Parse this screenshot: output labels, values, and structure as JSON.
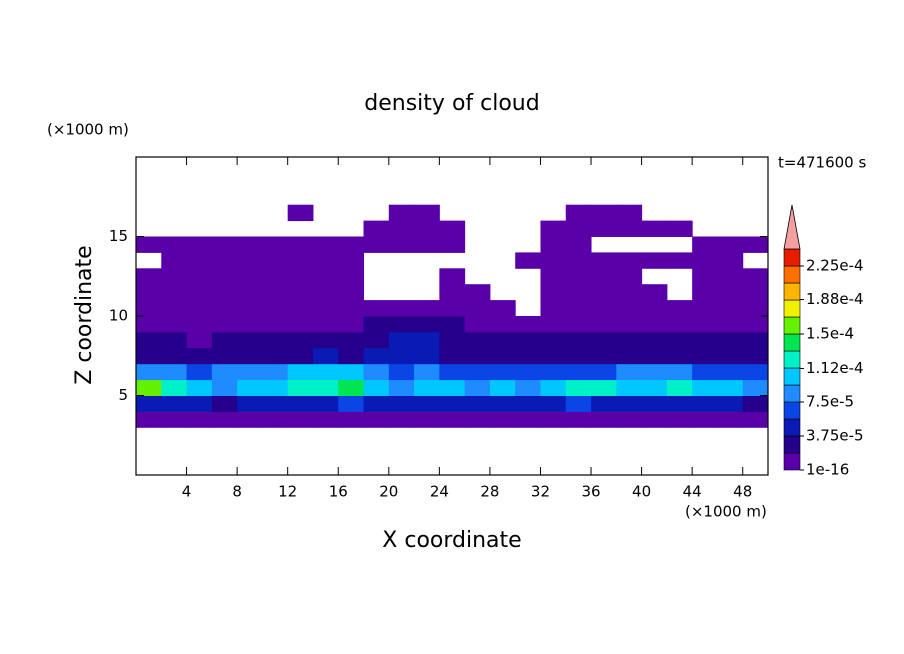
{
  "chart_data": {
    "type": "contour",
    "title": "density of cloud",
    "xlabel": "X coordinate",
    "ylabel": "Z coordinate",
    "x_unit": "(×1000 m)",
    "y_unit": "(×1000 m)",
    "time_label": "t=471600 s",
    "xlim": [
      0,
      50
    ],
    "ylim": [
      0,
      20
    ],
    "xticks": [
      4,
      8,
      12,
      16,
      20,
      24,
      28,
      32,
      36,
      40,
      44,
      48
    ],
    "yticks": [
      5,
      10,
      15
    ],
    "x": [
      1,
      3,
      5,
      7,
      9,
      11,
      13,
      15,
      17,
      19,
      21,
      23,
      25,
      27,
      29,
      31,
      33,
      35,
      37,
      39,
      41,
      43,
      45,
      47,
      49
    ],
    "y": [
      3.5,
      4.5,
      5.5,
      6.5,
      7.5,
      8.5,
      9.5,
      10.5,
      11.5,
      12.5,
      13.5,
      14.5,
      15.5,
      16.5
    ],
    "z": [
      [
        5e-06,
        5e-06,
        5e-06,
        5e-06,
        5e-06,
        5e-06,
        5e-06,
        5e-06,
        5e-06,
        5e-06,
        5e-06,
        5e-06,
        5e-06,
        5e-06,
        5e-06,
        5e-06,
        5e-06,
        5e-06,
        5e-06,
        5e-06,
        5e-06,
        5e-06,
        5e-06,
        5e-06,
        5e-06
      ],
      [
        4e-05,
        5e-05,
        4e-05,
        3e-05,
        4e-05,
        5e-05,
        4e-05,
        5e-05,
        6e-05,
        5e-05,
        4e-05,
        5e-05,
        4e-05,
        4e-05,
        5e-05,
        4e-05,
        5e-05,
        6e-05,
        5e-05,
        4e-05,
        5e-05,
        4e-05,
        5e-05,
        4e-05,
        3e-05
      ],
      [
        0.00016,
        0.00012,
        0.0001,
        9e-05,
        0.0001,
        0.00011,
        0.00012,
        0.00013,
        0.00014,
        0.00011,
        9e-05,
        0.0001,
        0.00011,
        9e-05,
        0.0001,
        9e-05,
        0.00011,
        0.00013,
        0.00012,
        0.0001,
        0.00011,
        0.00012,
        0.00011,
        0.0001,
        9e-05
      ],
      [
        9e-05,
        8e-05,
        7e-05,
        8e-05,
        9e-05,
        8e-05,
        0.0001,
        0.00011,
        0.0001,
        8e-05,
        7e-05,
        8e-05,
        7e-05,
        6e-05,
        7e-05,
        6e-05,
        7e-05,
        6e-05,
        7e-05,
        8e-05,
        9e-05,
        8e-05,
        7e-05,
        6e-05,
        7e-05
      ],
      [
        3e-05,
        3e-05,
        2.5e-05,
        3e-05,
        3e-05,
        3e-05,
        3.5e-05,
        4e-05,
        3.5e-05,
        4e-05,
        4.5e-05,
        4e-05,
        3.5e-05,
        3e-05,
        3e-05,
        2.5e-05,
        3e-05,
        3e-05,
        3e-05,
        3e-05,
        3.5e-05,
        3e-05,
        3e-05,
        3e-05,
        3e-05
      ],
      [
        2e-05,
        2e-05,
        1.5e-05,
        2e-05,
        2e-05,
        2e-05,
        2e-05,
        2.5e-05,
        2.5e-05,
        3.5e-05,
        4.5e-05,
        4e-05,
        3e-05,
        2.5e-05,
        2e-05,
        2e-05,
        2e-05,
        2e-05,
        2e-05,
        2e-05,
        2e-05,
        2e-05,
        2e-05,
        2e-05,
        2e-05
      ],
      [
        1e-05,
        1e-05,
        5e-06,
        1e-05,
        1e-05,
        1e-05,
        1e-05,
        1e-05,
        1.5e-05,
        2e-05,
        2.5e-05,
        2.5e-05,
        2e-05,
        1e-05,
        1e-05,
        1e-05,
        1e-05,
        1e-05,
        1e-05,
        1e-05,
        1e-05,
        1e-05,
        1e-05,
        1e-05,
        1e-05
      ],
      [
        8e-06,
        8e-06,
        8e-06,
        8e-06,
        8e-06,
        8e-06,
        8e-06,
        8e-06,
        8e-06,
        8e-06,
        8e-06,
        8e-06,
        8e-06,
        8e-06,
        8e-06,
        null,
        8e-06,
        8e-06,
        8e-06,
        8e-06,
        8e-06,
        8e-06,
        8e-06,
        8e-06,
        8e-06
      ],
      [
        5e-06,
        5e-06,
        5e-06,
        5e-06,
        5e-06,
        5e-06,
        5e-06,
        5e-06,
        5e-06,
        null,
        null,
        null,
        5e-06,
        5e-06,
        null,
        null,
        5e-06,
        5e-06,
        5e-06,
        5e-06,
        5e-06,
        null,
        5e-06,
        5e-06,
        5e-06
      ],
      [
        4e-06,
        4e-06,
        4e-06,
        4e-06,
        4e-06,
        4e-06,
        4e-06,
        4e-06,
        4e-06,
        null,
        null,
        null,
        4e-06,
        null,
        null,
        null,
        4e-06,
        4e-06,
        4e-06,
        4e-06,
        null,
        null,
        4e-06,
        4e-06,
        4e-06
      ],
      [
        null,
        3e-06,
        3e-06,
        3e-06,
        3e-06,
        3e-06,
        3e-06,
        3e-06,
        3e-06,
        null,
        null,
        null,
        null,
        null,
        null,
        3e-06,
        3e-06,
        3e-06,
        3e-06,
        3e-06,
        3e-06,
        3e-06,
        3e-06,
        3e-06,
        null
      ],
      [
        3e-06,
        3e-06,
        3e-06,
        3e-06,
        3e-06,
        3e-06,
        3e-06,
        3e-06,
        3e-06,
        3e-06,
        3e-06,
        3e-06,
        3e-06,
        null,
        null,
        null,
        3e-06,
        3e-06,
        null,
        null,
        null,
        null,
        3e-06,
        3e-06,
        3e-06
      ],
      [
        null,
        null,
        null,
        null,
        null,
        null,
        null,
        null,
        null,
        3e-06,
        3e-06,
        3e-06,
        3e-06,
        null,
        null,
        null,
        3e-06,
        3e-06,
        3e-06,
        3e-06,
        3e-06,
        3e-06,
        null,
        null,
        null
      ],
      [
        null,
        null,
        null,
        null,
        null,
        null,
        3e-06,
        null,
        null,
        null,
        3e-06,
        3e-06,
        null,
        null,
        null,
        null,
        null,
        3e-06,
        3e-06,
        3e-06,
        null,
        null,
        null,
        null,
        null
      ]
    ],
    "colorbar": {
      "levels": [
        1e-16,
        1.875e-05,
        3.75e-05,
        5.625e-05,
        7.5e-05,
        9.375e-05,
        0.0001125,
        0.00013125,
        0.00015,
        0.00016875,
        0.0001875,
        0.00020625,
        0.000225,
        0.00024375
      ],
      "colors": [
        "#5a00a8",
        "#24008c",
        "#0a1ab4",
        "#0a46e6",
        "#1e8cff",
        "#00c8ff",
        "#00f0c8",
        "#00e650",
        "#64f000",
        "#f0f000",
        "#ffb400",
        "#ff6e00",
        "#e61e00"
      ],
      "over_color": "#f4a0a0",
      "ticks": [
        {
          "value": 1e-16,
          "label": "1e-16"
        },
        {
          "value": 3.75e-05,
          "label": "3.75e-5"
        },
        {
          "value": 7.5e-05,
          "label": "7.5e-5"
        },
        {
          "value": 0.000112,
          "label": "1.12e-4"
        },
        {
          "value": 0.00015,
          "label": "1.5e-4"
        },
        {
          "value": 0.000188,
          "label": "1.88e-4"
        },
        {
          "value": 0.000225,
          "label": "2.25e-4"
        }
      ]
    }
  }
}
